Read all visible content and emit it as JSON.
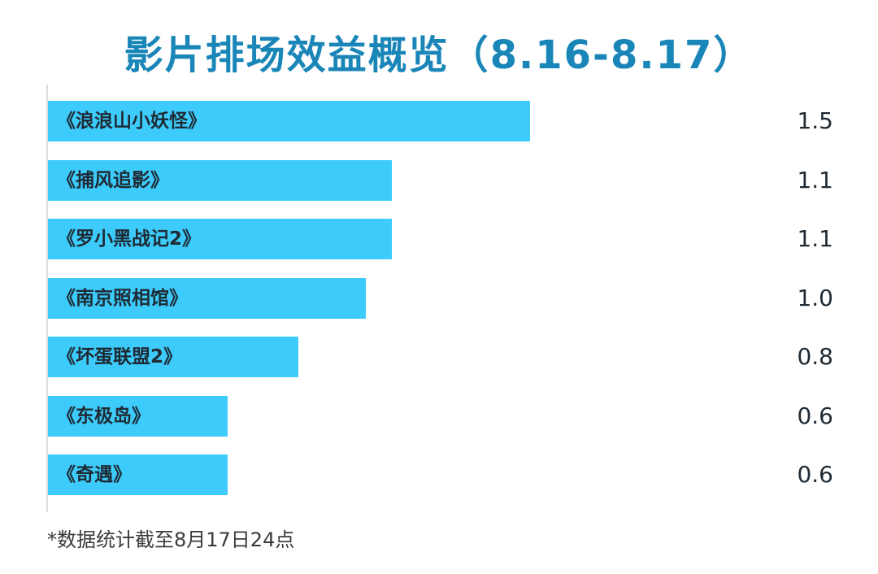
{
  "chart_data": {
    "type": "bar",
    "orientation": "horizontal",
    "title": "影片排场效益概览（8.16-8.17）",
    "categories": [
      "《浪浪山小妖怪》",
      "《捕风追影》",
      "《罗小黑战记2》",
      "《南京照相馆》",
      "《坏蛋联盟2》",
      "《东极岛》",
      "《奇遇》"
    ],
    "value_labels": [
      "1.5",
      "1.1",
      "1.1",
      "1.0",
      "0.8",
      "0.6",
      "0.6"
    ],
    "values": [
      1.5,
      1.07,
      1.07,
      0.99,
      0.78,
      0.56,
      0.56
    ],
    "xlim": [
      0,
      1.5
    ],
    "bar_color": "#3ccbfb",
    "title_color": "#1a86b8",
    "grid": false,
    "legend": "none"
  },
  "footnote": "*数据统计截至8月17日24点"
}
